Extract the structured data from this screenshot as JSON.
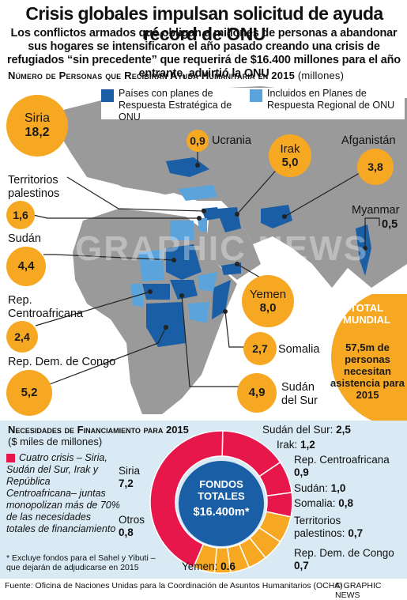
{
  "header": {
    "title": "Crisis globales impulsan solicitud de ayuda récord de ONU",
    "subtitle": "Los conflictos armados que obligan a millones de personas a abandonar sus hogares se intensificaron el año pasado creando una crisis de refugiados “sin precedente” que requerirá de $16.400 millones para el año entrante, advirtió la ONU"
  },
  "map_section": {
    "heading": "Número de Personas que Recibirán Ayuda Humanitaria en 2015",
    "unit": "(millones)",
    "legend": [
      {
        "label": "Países con planes de Respuesta Estratégica de ONU",
        "color": "#1a5fa5"
      },
      {
        "label": "Incluidos en Planes de Respuesta Regional de ONU",
        "color": "#5ba4db"
      }
    ],
    "countries": [
      {
        "name": "Siria",
        "value": "18,2"
      },
      {
        "name": "Ucrania",
        "value": "0,9"
      },
      {
        "name": "Irak",
        "value": "5,0"
      },
      {
        "name": "Afganistán",
        "value": "3,8"
      },
      {
        "name": "Territorios palestinos",
        "value": "1,6"
      },
      {
        "name": "Myanmar",
        "value": "0,5"
      },
      {
        "name": "Sudán",
        "value": "4,4"
      },
      {
        "name": "Yemen",
        "value": "8,0"
      },
      {
        "name": "Rep. Centroafricana",
        "value": "2,4"
      },
      {
        "name": "Somalia",
        "value": "2,7"
      },
      {
        "name": "Rep. Dem. de Congo",
        "value": "5,2"
      },
      {
        "name": "Sudán del Sur",
        "value": "4,9"
      }
    ],
    "total": {
      "label": "Total Mundial",
      "text": "57,5m de personas necesitan asistencia para 2015"
    }
  },
  "funding": {
    "heading": "Necesidades de Financiamiento para 2015",
    "unit": "($ miles de millones)",
    "four_crisis": "Cuatro crisis – Siria, Sudán del Sur, Irak y República Centroafricana– juntas monopolizan más de 70% de las necesidades totales de financiamiento",
    "footnote": "* Excluye fondos para el Sahel y Yibuti – que dejarán de adjudicarse en 2015",
    "center_label": "Fondos Totales",
    "center_value": "$16.400m*",
    "colors": {
      "crisis": "#e8174b",
      "others": "#f7a823",
      "center": "#1a5fa5"
    },
    "chart_data": {
      "type": "donut",
      "segments": [
        {
          "name": "Siria",
          "value": "7,2",
          "v": 7.2,
          "group": "crisis"
        },
        {
          "name": "Sudán del Sur",
          "value": "2,5",
          "v": 2.5,
          "group": "crisis"
        },
        {
          "name": "Irak",
          "value": "1,2",
          "v": 1.2,
          "group": "crisis"
        },
        {
          "name": "Rep. Centroafricana",
          "value": "0,9",
          "v": 0.9,
          "group": "crisis"
        },
        {
          "name": "Sudán",
          "value": "1,0",
          "v": 1.0,
          "group": "others"
        },
        {
          "name": "Somalia",
          "value": "0,8",
          "v": 0.8,
          "group": "others"
        },
        {
          "name": "Territorios palestinos",
          "value": "0,7",
          "v": 0.7,
          "group": "others"
        },
        {
          "name": "Rep. Dem. de Congo",
          "value": "0,7",
          "v": 0.7,
          "group": "others"
        },
        {
          "name": "Yemen",
          "value": "0.6",
          "v": 0.6,
          "group": "others"
        },
        {
          "name": "Otros",
          "value": "0,8",
          "v": 0.8,
          "group": "others"
        }
      ]
    }
  },
  "footer": {
    "source": "Fuente: Oficina de Naciones Unidas para la Coordinación de Asuntos Humanitarios (OCHA)",
    "credit": "© GRAPHIC NEWS"
  }
}
